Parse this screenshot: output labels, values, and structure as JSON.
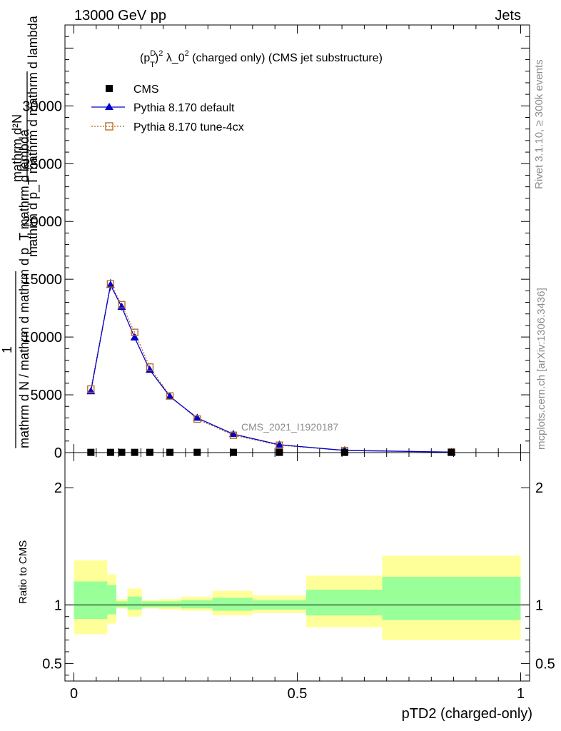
{
  "header": {
    "left": "13000 GeV pp",
    "right": "Jets"
  },
  "plot_title": "(p_T^D)^2 λ_0^2 (charged only) (CMS jet substructure)",
  "plot_title_parts": {
    "p": "(p",
    "sup1": "D",
    "sub1": "T",
    "close": ")",
    "sup2": "2",
    "mid": " λ_0",
    "sup3": "2",
    "rest": " (charged only) (CMS jet substructure)"
  },
  "side_labels": {
    "rivet": "Rivet 3.1.10, ≥ 300k events",
    "mcplots": "mcplots.cern.ch [arXiv:1306.3436]"
  },
  "watermark": "CMS_2021_I1920187",
  "ylabel_main": {
    "numerator": "1",
    "denominator": "mathrm d N / mathrm d mathrm d p_T mathrm d lambda",
    "top_num": "mathrm d²N",
    "top_den": "mathrm d p_T mathrm d mathrm d lambda"
  },
  "ylabel_ratio": "Ratio to CMS",
  "xlabel": "pTD2 (charged-only)",
  "colors": {
    "data": "#000000",
    "default": "#0000cc",
    "tune4cx": "#b5651d",
    "band_outer": "#ffff99",
    "band_inner": "#99ff99"
  },
  "chart_data": {
    "type": "line",
    "xlim": [
      -0.02,
      1.02
    ],
    "ylim": [
      0,
      37000
    ],
    "x_ticks": [
      0,
      0.5,
      1
    ],
    "x_tick_labels": [
      "0",
      "0.5",
      "1"
    ],
    "y_ticks": [
      0,
      5000,
      10000,
      15000,
      20000,
      25000,
      30000
    ],
    "y_tick_labels": [
      "0",
      "5000",
      "10000",
      "15000",
      "20000",
      "25000",
      "30000"
    ],
    "legend_position": "top-left",
    "series": [
      {
        "name": "CMS",
        "marker": "square",
        "x": [
          0.038,
          0.082,
          0.107,
          0.136,
          0.17,
          0.215,
          0.276,
          0.357,
          0.46,
          0.606,
          0.845
        ],
        "y": [
          20,
          20,
          20,
          20,
          20,
          20,
          20,
          20,
          20,
          20,
          20
        ]
      },
      {
        "name": "Pythia 8.170 default",
        "marker": "triangle",
        "x": [
          0.038,
          0.082,
          0.107,
          0.136,
          0.17,
          0.215,
          0.276,
          0.357,
          0.46,
          0.606,
          0.845
        ],
        "y": [
          5300,
          14500,
          12600,
          9950,
          7150,
          4850,
          3000,
          1600,
          680,
          190,
          45
        ],
        "yerr": [
          200,
          500,
          300,
          250,
          150,
          120,
          80,
          60,
          30,
          15,
          8
        ]
      },
      {
        "name": "Pythia 8.170 tune-4cx",
        "marker": "open-square",
        "x": [
          0.038,
          0.082,
          0.107,
          0.136,
          0.17,
          0.215,
          0.276,
          0.357,
          0.46,
          0.606,
          0.845
        ],
        "y": [
          5500,
          14600,
          12800,
          10400,
          7400,
          4900,
          2900,
          1500,
          640,
          180,
          40
        ]
      }
    ],
    "ratio": {
      "ylim": [
        0.35,
        2.3
      ],
      "y_ticks": [
        0.5,
        1,
        2
      ],
      "y_tick_labels": [
        "0.5",
        "1",
        "2"
      ],
      "bins": [
        {
          "lo": 0.0,
          "hi": 0.075,
          "outer": [
            0.75,
            1.38
          ],
          "inner": [
            0.88,
            1.2
          ]
        },
        {
          "lo": 0.075,
          "hi": 0.095,
          "outer": [
            0.84,
            1.26
          ],
          "inner": [
            0.92,
            1.17
          ]
        },
        {
          "lo": 0.095,
          "hi": 0.12,
          "outer": [
            0.97,
            1.05
          ],
          "inner": [
            0.98,
            1.03
          ]
        },
        {
          "lo": 0.12,
          "hi": 0.152,
          "outer": [
            0.9,
            1.14
          ],
          "inner": [
            0.96,
            1.07
          ]
        },
        {
          "lo": 0.152,
          "hi": 0.19,
          "outer": [
            0.97,
            1.04
          ],
          "inner": [
            0.98,
            1.03
          ]
        },
        {
          "lo": 0.19,
          "hi": 0.24,
          "outer": [
            0.96,
            1.05
          ],
          "inner": [
            0.98,
            1.03
          ]
        },
        {
          "lo": 0.24,
          "hi": 0.31,
          "outer": [
            0.95,
            1.07
          ],
          "inner": [
            0.97,
            1.04
          ]
        },
        {
          "lo": 0.31,
          "hi": 0.4,
          "outer": [
            0.91,
            1.12
          ],
          "inner": [
            0.95,
            1.06
          ]
        },
        {
          "lo": 0.4,
          "hi": 0.52,
          "outer": [
            0.93,
            1.08
          ],
          "inner": [
            0.96,
            1.04
          ]
        },
        {
          "lo": 0.52,
          "hi": 0.69,
          "outer": [
            0.81,
            1.25
          ],
          "inner": [
            0.91,
            1.13
          ]
        },
        {
          "lo": 0.69,
          "hi": 1.0,
          "outer": [
            0.7,
            1.42
          ],
          "inner": [
            0.87,
            1.24
          ]
        }
      ]
    }
  }
}
